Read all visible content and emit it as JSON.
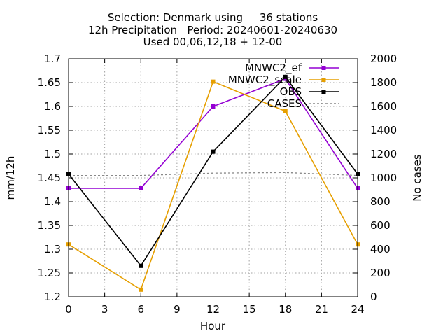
{
  "chart_data": {
    "type": "line",
    "title_lines": [
      "Selection: Denmark using     36 stations",
      "12h Precipitation   Period: 20240601-20240630",
      "Used 00,06,12,18 + 12-00"
    ],
    "xlabel": "Hour",
    "ylabel": "mm/12h",
    "y2label": "No cases",
    "xlim": [
      0,
      24
    ],
    "ylim": [
      1.2,
      1.7
    ],
    "y2lim": [
      0,
      2000
    ],
    "x_ticks": [
      0,
      3,
      6,
      9,
      12,
      15,
      18,
      21,
      24
    ],
    "y_ticks": [
      "1.2",
      "1.25",
      "1.3",
      "1.35",
      "1.4",
      "1.45",
      "1.5",
      "1.55",
      "1.6",
      "1.65",
      "1.7"
    ],
    "y2_ticks": [
      "0",
      "200",
      "400",
      "600",
      "800",
      "1000",
      "1200",
      "1400",
      "1600",
      "1800",
      "2000"
    ],
    "grid": true,
    "legend_position": "top-right",
    "x": [
      0,
      6,
      12,
      18,
      24
    ],
    "series": [
      {
        "name": "MNWC2_ef",
        "color": "#9400d3",
        "values": [
          1.428,
          1.428,
          1.6,
          1.658,
          1.428
        ]
      },
      {
        "name": "MNWC2_scale",
        "color": "#e69f00",
        "values": [
          1.31,
          1.215,
          1.652,
          1.59,
          1.31
        ]
      },
      {
        "name": "OBS",
        "color": "#000000",
        "values": [
          1.458,
          1.265,
          1.505,
          1.662,
          1.458
        ]
      }
    ],
    "cases": {
      "name": "CASES",
      "color": "#888888",
      "x": [
        0,
        6,
        12,
        18,
        24
      ],
      "values": [
        1020,
        1020,
        1040,
        1045,
        1020
      ]
    }
  }
}
